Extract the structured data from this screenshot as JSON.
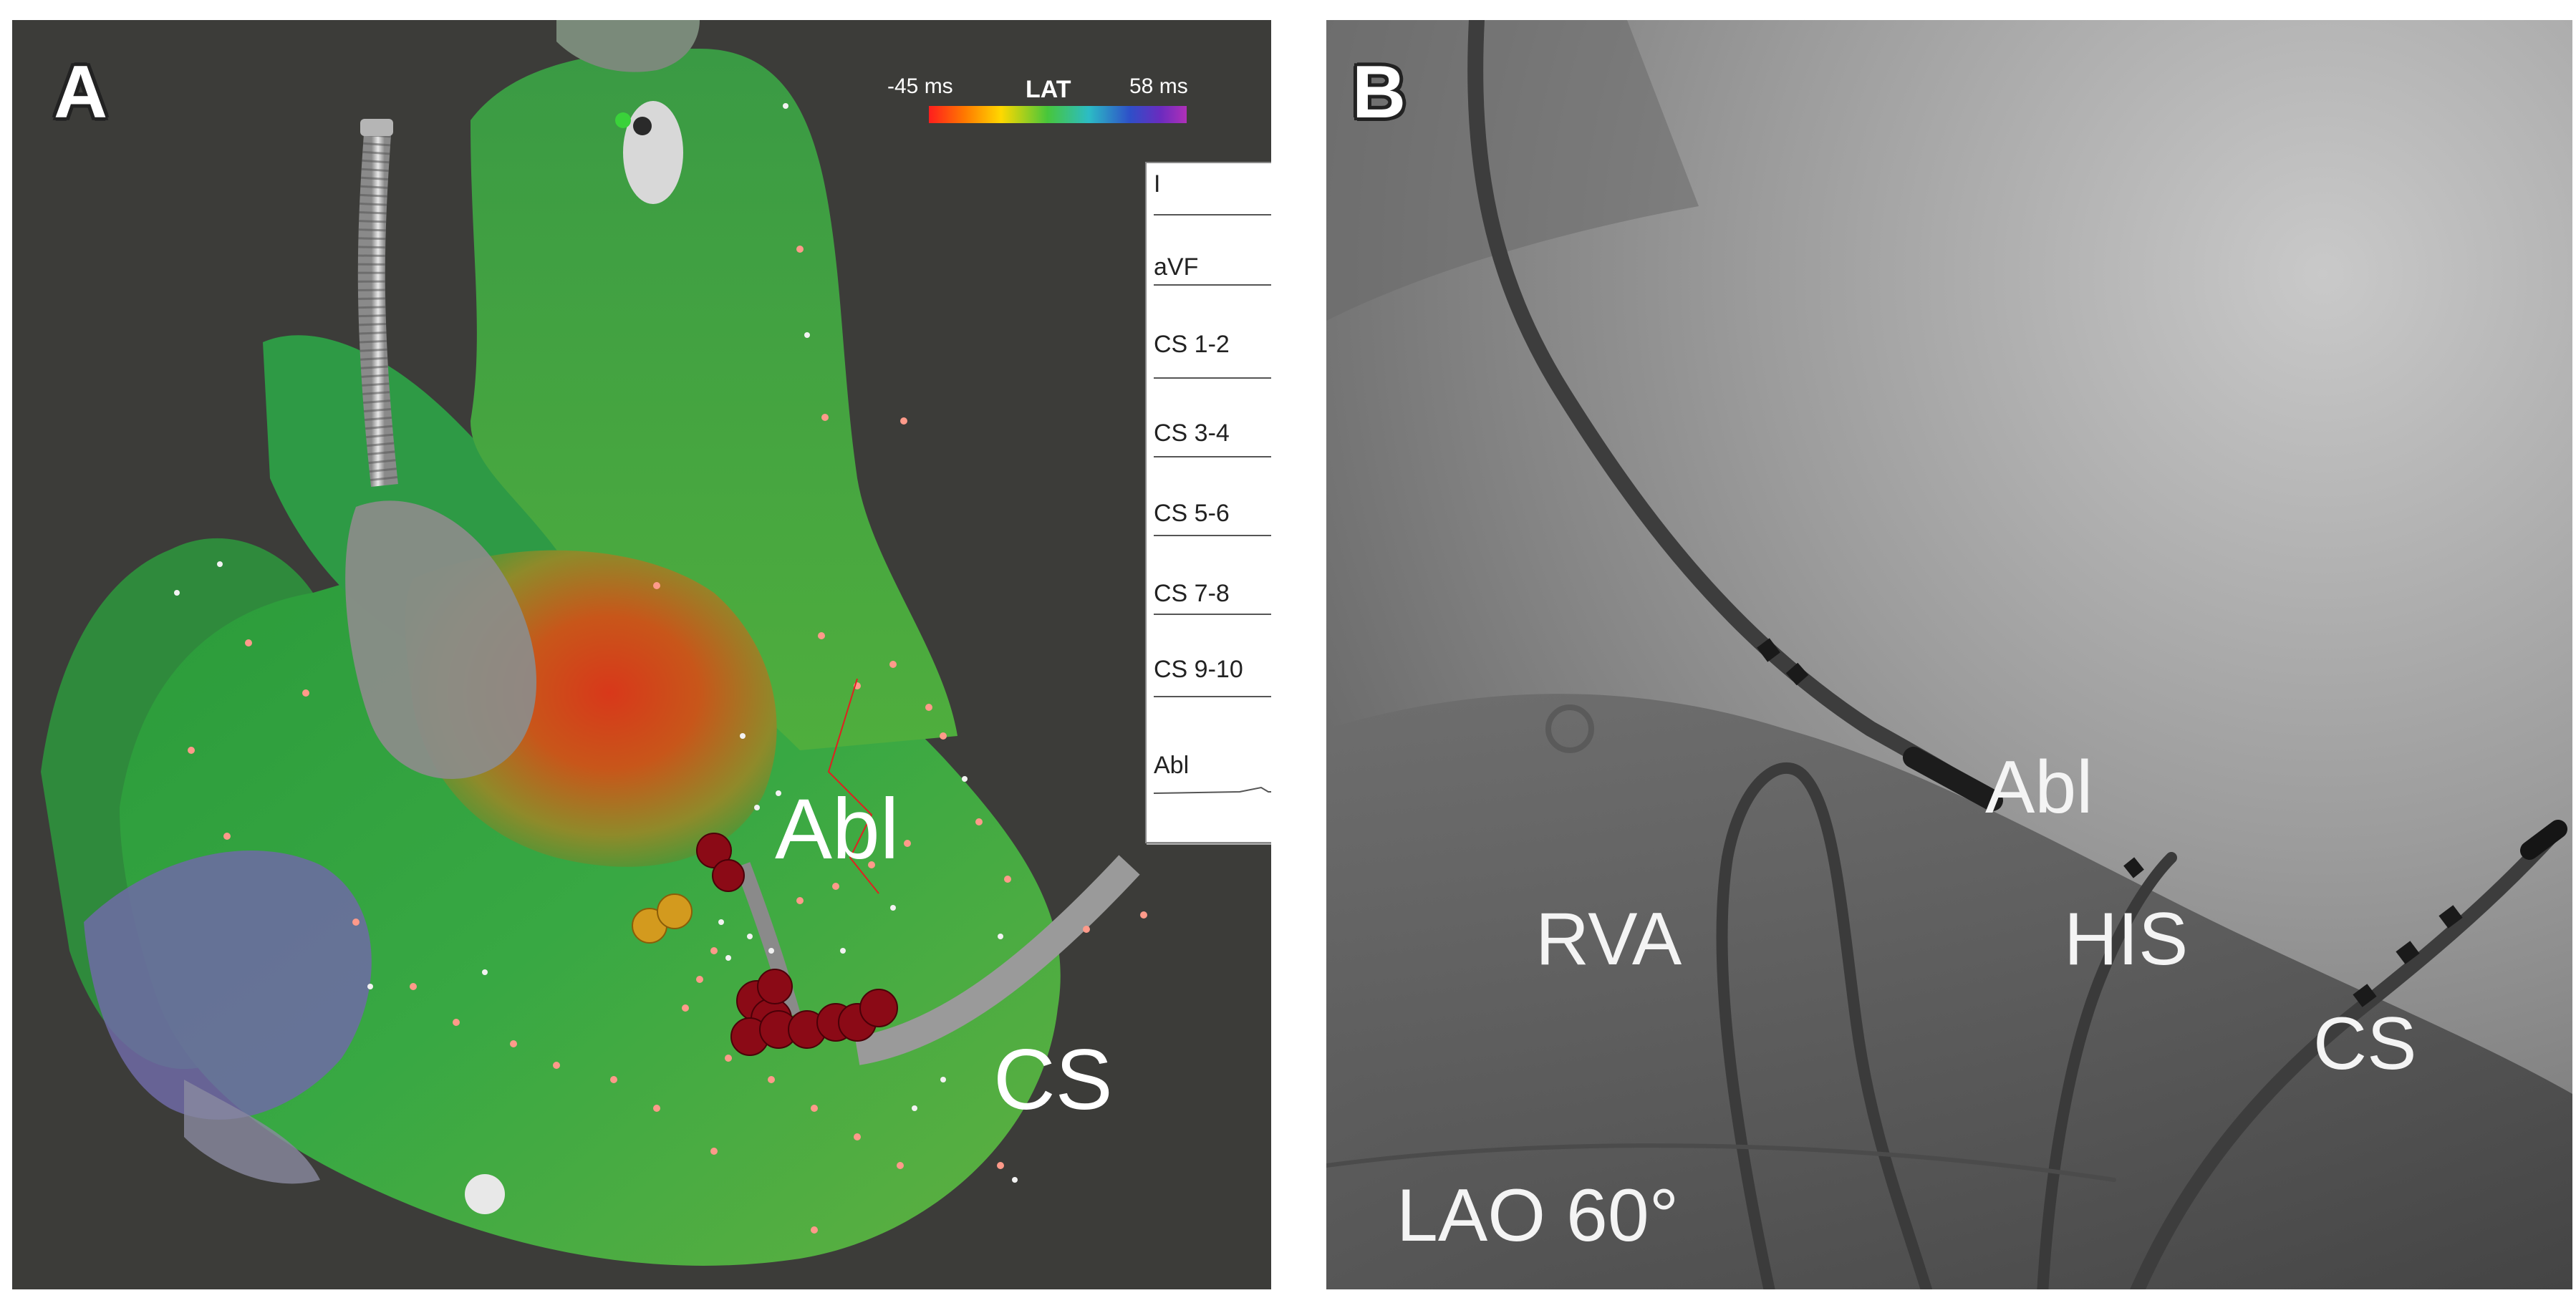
{
  "panel_a": {
    "letter": "A",
    "colorbar": {
      "min_label": "-45 ms",
      "title": "LAT",
      "max_label": "58 ms"
    },
    "catheter_labels": {
      "abl": "Abl",
      "cs": "CS"
    },
    "ecg_inset": {
      "leads": [
        "I",
        "aVF",
        "CS 1-2",
        "CS 3-4",
        "CS 5-6",
        "CS 7-8",
        "CS 9-10",
        "Abl"
      ]
    }
  },
  "panel_b": {
    "letter": "B",
    "labels": {
      "abl": "Abl",
      "rva": "RVA",
      "his": "HIS",
      "cs": "CS",
      "view": "LAO 60°"
    }
  },
  "colors": {
    "map_background": "#3c3c39",
    "fluoro_background": "#7d7d7d",
    "ablation_lesion": "#8b0a16",
    "his_marker": "#d39a1e"
  }
}
